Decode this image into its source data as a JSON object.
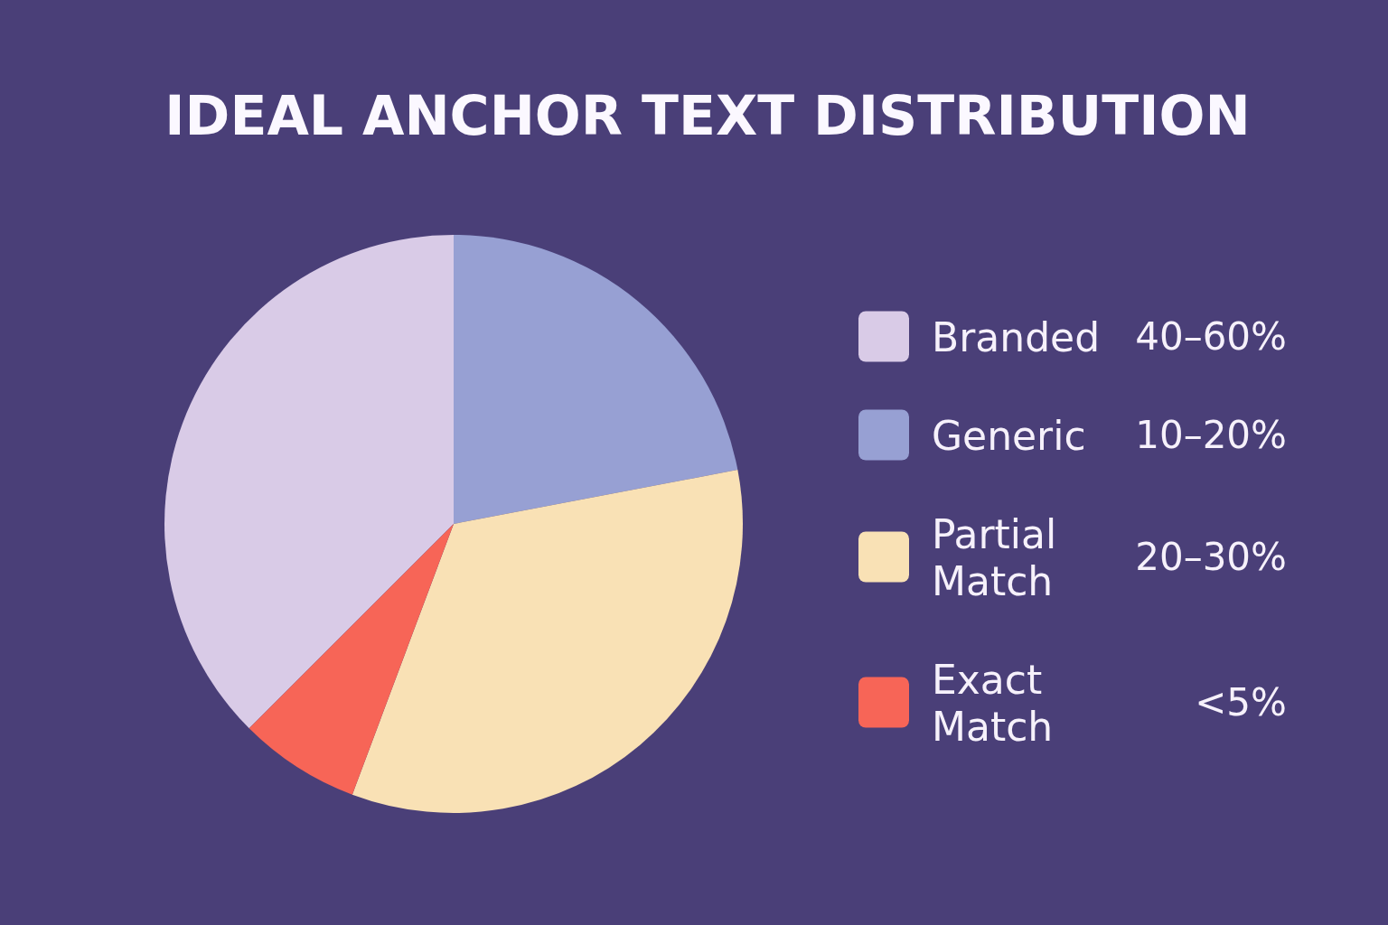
{
  "chart_data": {
    "type": "pie",
    "title": "IDEAL ANCHOR TEXT DISTRIBUTION",
    "categories": [
      "Branded",
      "Generic",
      "Partial Match",
      "Exact Match"
    ],
    "values": [
      37.5,
      22,
      33.7,
      6.8
    ],
    "annotations": [
      "40–60%",
      "10–20%",
      "20–30%",
      "<5%"
    ],
    "colors": [
      "#d9cbe7",
      "#97a0d3",
      "#f9e1b5",
      "#f76557"
    ],
    "legend": "right"
  }
}
